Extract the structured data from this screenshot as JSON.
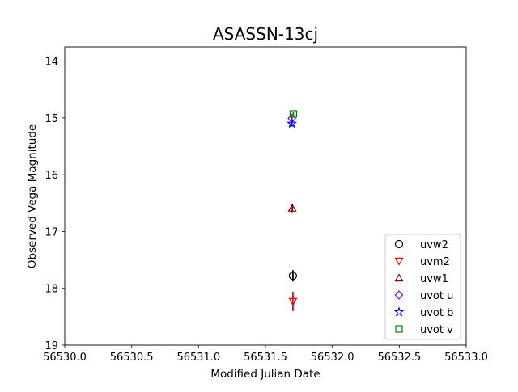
{
  "chart_data": {
    "type": "scatter",
    "title": "ASASSN-13cj",
    "xlabel": "Modified Julian Date",
    "ylabel": "Observed Vega Magnitude",
    "xlim": [
      56530.0,
      56533.0
    ],
    "ylim": [
      19.0,
      13.75
    ],
    "y_inverted": true,
    "x_ticks": [
      56530.0,
      56530.5,
      56531.0,
      56531.5,
      56532.0,
      56532.5,
      56533.0
    ],
    "x_tick_labels": [
      "56530.0",
      "56530.5",
      "56531.0",
      "56531.5",
      "56532.0",
      "56532.5",
      "56533.0"
    ],
    "y_ticks": [
      14,
      15,
      16,
      17,
      18,
      19
    ],
    "y_tick_labels": [
      "14",
      "15",
      "16",
      "17",
      "18",
      "19"
    ],
    "grid": false,
    "legend_position": "lower-right",
    "series": [
      {
        "name": "uvw2",
        "marker": "circle",
        "color": "#000000",
        "x": [
          56531.705
        ],
        "y": [
          17.78
        ],
        "yerr": [
          0.1
        ]
      },
      {
        "name": "uvm2",
        "marker": "triangle-down",
        "color": "#ff0000",
        "x": [
          56531.705
        ],
        "y": [
          18.23
        ],
        "yerr": [
          0.17
        ]
      },
      {
        "name": "uvw1",
        "marker": "triangle-up",
        "color": "#800000",
        "x": [
          56531.7
        ],
        "y": [
          16.59
        ],
        "yerr": [
          0.07
        ]
      },
      {
        "name": "uvot u",
        "marker": "diamond",
        "color": "#9400d3",
        "x": [
          56531.697
        ],
        "y": [
          15.01
        ],
        "yerr": [
          0.05
        ]
      },
      {
        "name": "uvot b",
        "marker": "star",
        "color": "#0000ff",
        "x": [
          56531.697
        ],
        "y": [
          15.1
        ],
        "yerr": [
          0.05
        ]
      },
      {
        "name": "uvot v",
        "marker": "square",
        "color": "#008000",
        "x": [
          56531.708
        ],
        "y": [
          14.93
        ],
        "yerr": [
          0.04
        ]
      }
    ]
  }
}
